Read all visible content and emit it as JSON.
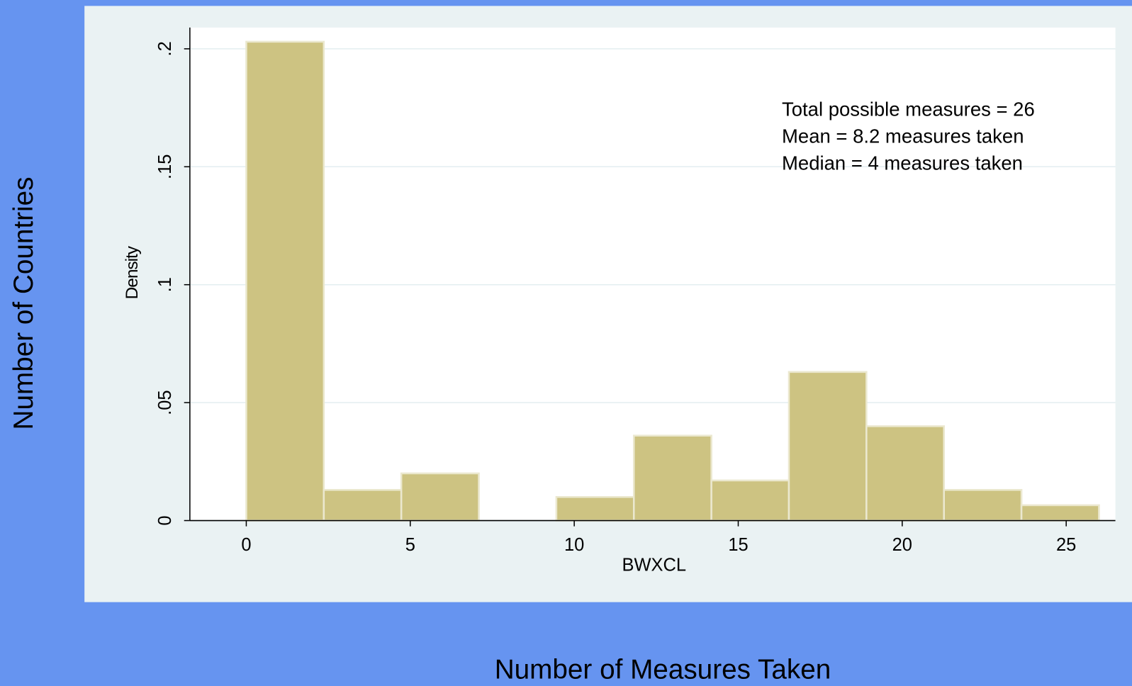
{
  "chart_data": {
    "type": "histogram",
    "xlabel": "BWXCL",
    "ylabel": "Density",
    "annotations": [
      "Total possible measures = 26",
      "Mean = 8.2 measures taken",
      "Median = 4 measures taken"
    ],
    "bins": [
      0,
      2.364,
      4.727,
      7.091,
      9.455,
      11.818,
      14.182,
      16.545,
      18.909,
      21.273,
      23.636,
      26
    ],
    "values": [
      0.203,
      0.013,
      0.02,
      0,
      0.01,
      0.036,
      0.017,
      0.063,
      0.04,
      0.013,
      0.0065
    ],
    "color": "#cdc382",
    "xlim": [
      -1.72,
      26.5
    ],
    "xticks": [
      0,
      5,
      10,
      15,
      20,
      25
    ],
    "ylim": [
      0,
      0.209
    ],
    "yticks": [
      0,
      {
        "value": 0.05,
        "label": ".05"
      },
      {
        "value": 0.1,
        "label": ".1"
      },
      {
        "value": 0.15,
        "label": ".15"
      },
      {
        "value": 0.2,
        "label": ".2"
      }
    ],
    "grid": true
  },
  "slide": {
    "xlabel": "Number of Measures Taken",
    "ylabel": "Number of Countries"
  }
}
